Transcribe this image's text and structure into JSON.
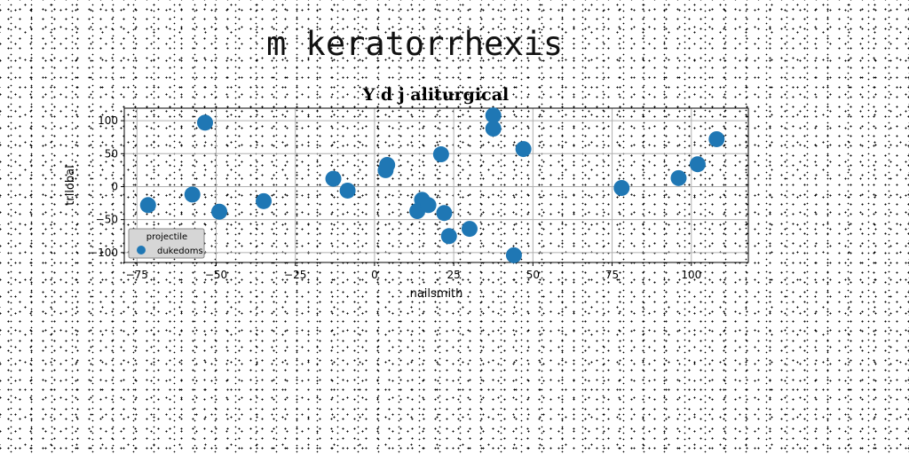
{
  "page": {
    "title": "m keratorrhexis"
  },
  "chart_data": {
    "type": "scatter",
    "title": "Y d j aliturgical",
    "xlabel": "nailsmith",
    "ylabel": "trilobal",
    "xlim": [
      -79,
      118
    ],
    "ylim": [
      -115,
      119
    ],
    "xticks": [
      -75,
      -50,
      -25,
      0,
      25,
      50,
      75,
      100
    ],
    "yticks": [
      -100,
      -50,
      0,
      50,
      100
    ],
    "grid": true,
    "legend": {
      "title": "projectile",
      "placement": "lower-left"
    },
    "series": [
      {
        "name": "dukedoms",
        "color": "#1f77b4",
        "points": [
          {
            "x": -71.5,
            "y": -28
          },
          {
            "x": -57.5,
            "y": -12
          },
          {
            "x": -53.5,
            "y": 97
          },
          {
            "x": -49,
            "y": -38
          },
          {
            "x": -35,
            "y": -22
          },
          {
            "x": -13,
            "y": 12
          },
          {
            "x": -8.5,
            "y": -6
          },
          {
            "x": 3.5,
            "y": 25
          },
          {
            "x": 4,
            "y": 33
          },
          {
            "x": 13.5,
            "y": -37
          },
          {
            "x": 15,
            "y": -20
          },
          {
            "x": 17,
            "y": -28
          },
          {
            "x": 21,
            "y": 49
          },
          {
            "x": 22,
            "y": -40
          },
          {
            "x": 23.5,
            "y": -75
          },
          {
            "x": 30,
            "y": -64
          },
          {
            "x": 37.5,
            "y": 108
          },
          {
            "x": 37.5,
            "y": 88
          },
          {
            "x": 44,
            "y": -104
          },
          {
            "x": 47,
            "y": 57
          },
          {
            "x": 78,
            "y": -2
          },
          {
            "x": 96,
            "y": 13
          },
          {
            "x": 102,
            "y": 34
          },
          {
            "x": 108,
            "y": 72
          }
        ]
      }
    ]
  }
}
